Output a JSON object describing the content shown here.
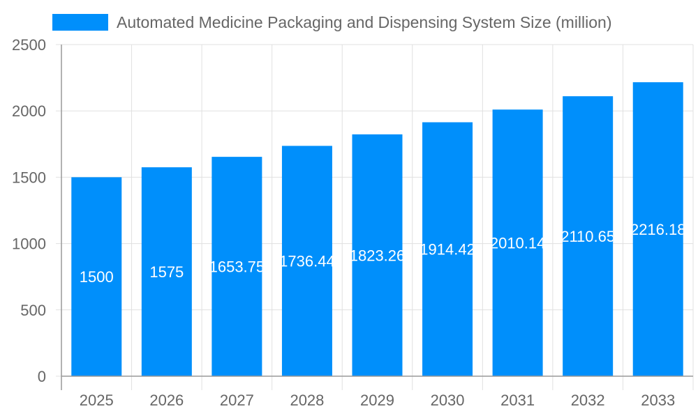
{
  "chart_data": {
    "type": "bar",
    "categories": [
      "2025",
      "2026",
      "2027",
      "2028",
      "2029",
      "2030",
      "2031",
      "2032",
      "2033"
    ],
    "series": [
      {
        "name": "Automated Medicine Packaging and Dispensing System Size (million)",
        "values": [
          1500,
          1575,
          1653.75,
          1736.44,
          1823.26,
          1914.42,
          2010.14,
          2110.65,
          2216.18
        ]
      }
    ],
    "ylim": [
      0,
      2500
    ],
    "yticks": [
      0,
      500,
      1000,
      1500,
      2000,
      2500
    ],
    "grid": true,
    "legend": "top",
    "data_labels": true,
    "colors": {
      "bar": "#008ffb",
      "label": "#ffffff",
      "grid": "#e0e0e0",
      "axis": "#999999",
      "text": "#666666"
    }
  }
}
